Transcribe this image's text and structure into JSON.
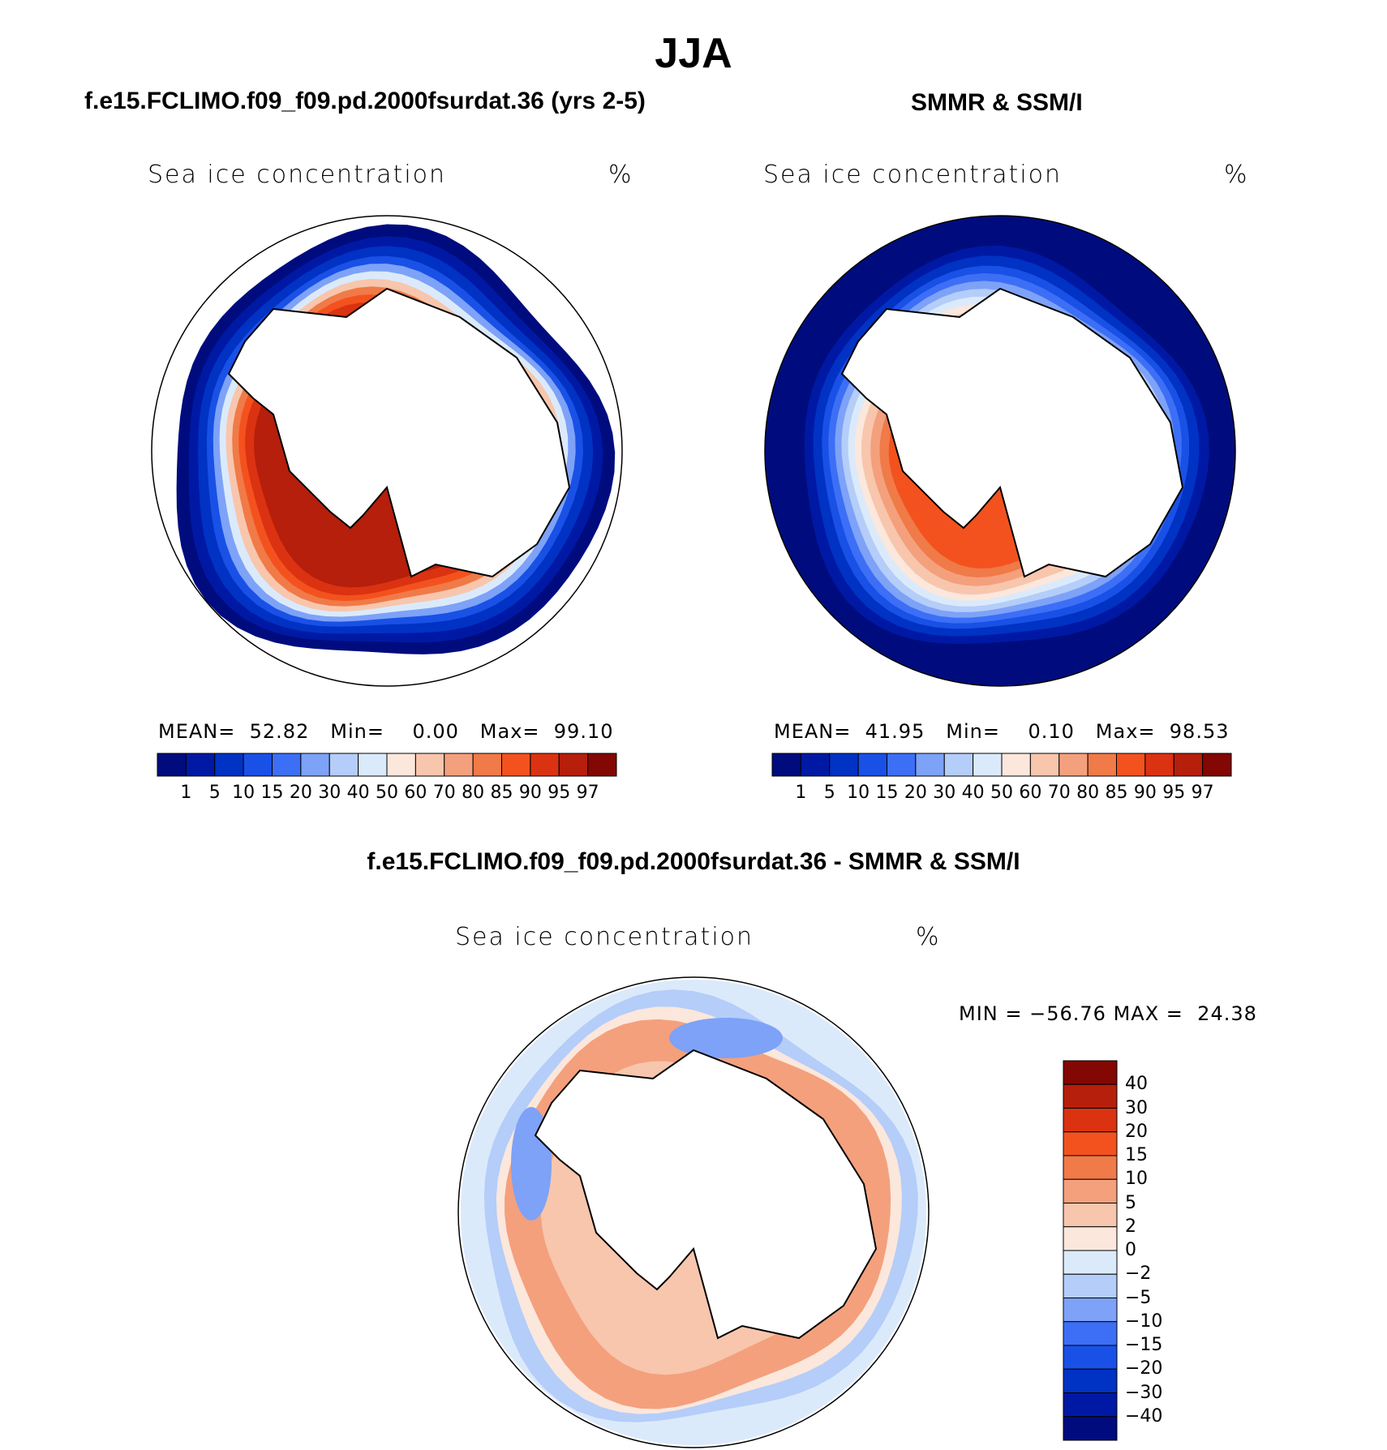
{
  "main_title": "JJA",
  "colors": {
    "seq_palette": [
      "#000c7e",
      "#0019a4",
      "#0032c4",
      "#1950e6",
      "#3c6ff6",
      "#7da2f7",
      "#b4cdf9",
      "#dbeafb",
      "#fbe7dc",
      "#f7c6ad",
      "#f4a07d",
      "#f07a48",
      "#f3521e",
      "#db3212",
      "#b51f0b",
      "#830703"
    ],
    "diff_palette": [
      "#000c7e",
      "#0019a4",
      "#0032c4",
      "#1950e6",
      "#3c6ff6",
      "#7da2f7",
      "#b4cdf9",
      "#dbeafb",
      "#fbe7dc",
      "#f7c6ad",
      "#f4a07d",
      "#f07a48",
      "#f3521e",
      "#db3212",
      "#b51f0b",
      "#830703"
    ],
    "land": "#ffffff",
    "outline": "#000000"
  },
  "panels": {
    "model": {
      "title": "f.e15.FCLIMO.f09_f09.pd.2000fsurdat.36 (yrs 2-5)",
      "field_name": "Sea ice concentration",
      "units": "%",
      "mean_label": "MEAN=",
      "mean_value": "52.82",
      "min_label": "Min=",
      "min_value": "0.00",
      "max_label": "Max=",
      "max_value": "99.10"
    },
    "obs": {
      "title": "SMMR & SSM/I",
      "field_name": "Sea ice concentration",
      "units": "%",
      "mean_label": "MEAN=",
      "mean_value": "41.95",
      "min_label": "Min=",
      "min_value": "0.10",
      "max_label": "Max=",
      "max_value": "98.53"
    },
    "diff": {
      "title": "f.e15.FCLIMO.f09_f09.pd.2000fsurdat.36 - SMMR & SSM/I",
      "field_name": "Sea ice concentration",
      "units": "%",
      "min_label": "MIN =",
      "min_value": "−56.76",
      "max_label": "MAX =",
      "max_value": "24.38"
    }
  },
  "chart_data": [
    {
      "type": "heatmap",
      "title": "f.e15.FCLIMO.f09_f09.pd.2000fsurdat.36 (yrs 2-5)",
      "projection": "south polar stereographic",
      "season": "JJA",
      "variable": "Sea ice concentration",
      "units": "%",
      "mean": 52.82,
      "min": 0.0,
      "max": 99.1,
      "contour_levels": [
        1,
        5,
        10,
        15,
        20,
        30,
        40,
        50,
        60,
        70,
        80,
        85,
        90,
        95,
        97
      ],
      "colorbar_ticks": [
        "1",
        "5",
        "10",
        "15",
        "20",
        "30",
        "40",
        "50",
        "60",
        "70",
        "80",
        "85",
        "90",
        "95",
        "97"
      ]
    },
    {
      "type": "heatmap",
      "title": "SMMR & SSM/I",
      "projection": "south polar stereographic",
      "season": "JJA",
      "variable": "Sea ice concentration",
      "units": "%",
      "mean": 41.95,
      "min": 0.1,
      "max": 98.53,
      "contour_levels": [
        1,
        5,
        10,
        15,
        20,
        30,
        40,
        50,
        60,
        70,
        80,
        85,
        90,
        95,
        97
      ],
      "colorbar_ticks": [
        "1",
        "5",
        "10",
        "15",
        "20",
        "30",
        "40",
        "50",
        "60",
        "70",
        "80",
        "85",
        "90",
        "95",
        "97"
      ]
    },
    {
      "type": "heatmap",
      "title": "f.e15.FCLIMO.f09_f09.pd.2000fsurdat.36 - SMMR & SSM/I",
      "projection": "south polar stereographic",
      "season": "JJA",
      "variable": "Sea ice concentration",
      "units": "%",
      "min": -56.76,
      "max": 24.38,
      "contour_levels": [
        -40,
        -30,
        -20,
        -15,
        -10,
        -5,
        -2,
        0,
        2,
        5,
        10,
        15,
        20,
        30,
        40
      ],
      "colorbar_ticks": [
        "40",
        "30",
        "20",
        "15",
        "10",
        "5",
        "2",
        "0",
        "−2",
        "−5",
        "−10",
        "−15",
        "−20",
        "−30",
        "−40"
      ]
    }
  ]
}
